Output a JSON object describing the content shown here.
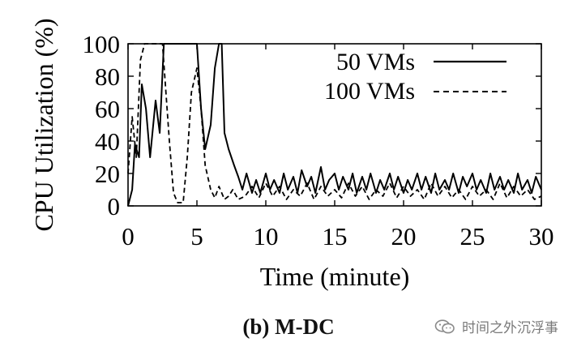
{
  "chart_data": {
    "type": "line",
    "title": "",
    "caption": "(b) M-DC",
    "xlabel": "Time (minute)",
    "ylabel": "CPU Utilization (%)",
    "xlim": [
      0,
      30
    ],
    "ylim": [
      0,
      100
    ],
    "xticks": [
      0,
      5,
      10,
      15,
      20,
      25,
      30
    ],
    "yticks": [
      0,
      20,
      40,
      60,
      80,
      100
    ],
    "grid": false,
    "legend_position": "top-right",
    "series": [
      {
        "name": "50 VMs",
        "style": "solid",
        "color": "#000000",
        "x": [
          0,
          0.3,
          0.5,
          0.8,
          1.0,
          1.3,
          1.6,
          2.0,
          2.3,
          2.6,
          2.8,
          3.0,
          3.5,
          4.0,
          4.5,
          5.0,
          5.3,
          5.6,
          6.0,
          6.3,
          6.6,
          6.8,
          7.0,
          7.3,
          7.7,
          8.0,
          8.3,
          8.6,
          9.0,
          9.3,
          9.6,
          10.0,
          10.3,
          10.6,
          11.0,
          11.3,
          11.6,
          12.0,
          12.3,
          12.6,
          13.0,
          13.3,
          13.6,
          14.0,
          14.3,
          14.6,
          15.0,
          15.3,
          15.6,
          16.0,
          16.3,
          16.6,
          17.0,
          17.3,
          17.6,
          18.0,
          18.3,
          18.6,
          19.0,
          19.3,
          19.6,
          20.0,
          20.3,
          20.6,
          21.0,
          21.3,
          21.6,
          22.0,
          22.3,
          22.6,
          23.0,
          23.3,
          23.6,
          24.0,
          24.3,
          24.6,
          25.0,
          25.3,
          25.6,
          26.0,
          26.3,
          26.6,
          27.0,
          27.3,
          27.6,
          28.0,
          28.3,
          28.6,
          29.0,
          29.3,
          29.6,
          30.0
        ],
        "y": [
          0,
          10,
          38,
          30,
          75,
          60,
          30,
          65,
          45,
          100,
          100,
          100,
          100,
          100,
          100,
          100,
          60,
          35,
          50,
          85,
          100,
          100,
          45,
          35,
          25,
          18,
          10,
          20,
          8,
          16,
          8,
          20,
          10,
          16,
          8,
          20,
          10,
          18,
          8,
          22,
          12,
          18,
          8,
          24,
          10,
          16,
          20,
          10,
          18,
          10,
          20,
          8,
          18,
          10,
          20,
          8,
          16,
          10,
          20,
          10,
          18,
          8,
          16,
          10,
          20,
          10,
          18,
          8,
          20,
          10,
          16,
          10,
          20,
          8,
          18,
          12,
          20,
          10,
          16,
          8,
          20,
          10,
          18,
          10,
          16,
          8,
          20,
          10,
          16,
          8,
          18,
          10
        ]
      },
      {
        "name": "100 VMs",
        "style": "dashed",
        "color": "#000000",
        "x": [
          0,
          0.3,
          0.6,
          0.9,
          1.2,
          1.5,
          2.0,
          2.5,
          3.0,
          3.3,
          3.6,
          4.0,
          4.3,
          4.6,
          5.0,
          5.3,
          5.6,
          6.0,
          6.3,
          6.6,
          7.0,
          7.3,
          7.6,
          8.0,
          8.5,
          9.0,
          9.5,
          10.0,
          10.5,
          11.0,
          11.5,
          12.0,
          12.5,
          13.0,
          13.5,
          14.0,
          14.5,
          15.0,
          15.5,
          16.0,
          16.5,
          17.0,
          17.5,
          18.0,
          18.5,
          19.0,
          19.5,
          20.0,
          20.5,
          21.0,
          21.5,
          22.0,
          22.5,
          23.0,
          23.5,
          24.0,
          24.5,
          25.0,
          25.5,
          26.0,
          26.5,
          27.0,
          27.5,
          28.0,
          28.5,
          29.0,
          29.5,
          30.0
        ],
        "y": [
          20,
          55,
          30,
          90,
          100,
          100,
          100,
          100,
          40,
          8,
          2,
          2,
          30,
          70,
          85,
          60,
          25,
          10,
          5,
          12,
          4,
          6,
          10,
          4,
          6,
          12,
          5,
          14,
          6,
          12,
          4,
          10,
          6,
          14,
          4,
          12,
          6,
          10,
          5,
          14,
          6,
          12,
          4,
          10,
          6,
          14,
          5,
          12,
          6,
          10,
          4,
          14,
          6,
          12,
          5,
          10,
          4,
          12,
          6,
          10,
          4,
          14,
          5,
          12,
          6,
          10,
          4,
          6
        ]
      }
    ]
  },
  "watermark": {
    "text": "时间之外沉浮事",
    "icon": "wechat-icon"
  }
}
